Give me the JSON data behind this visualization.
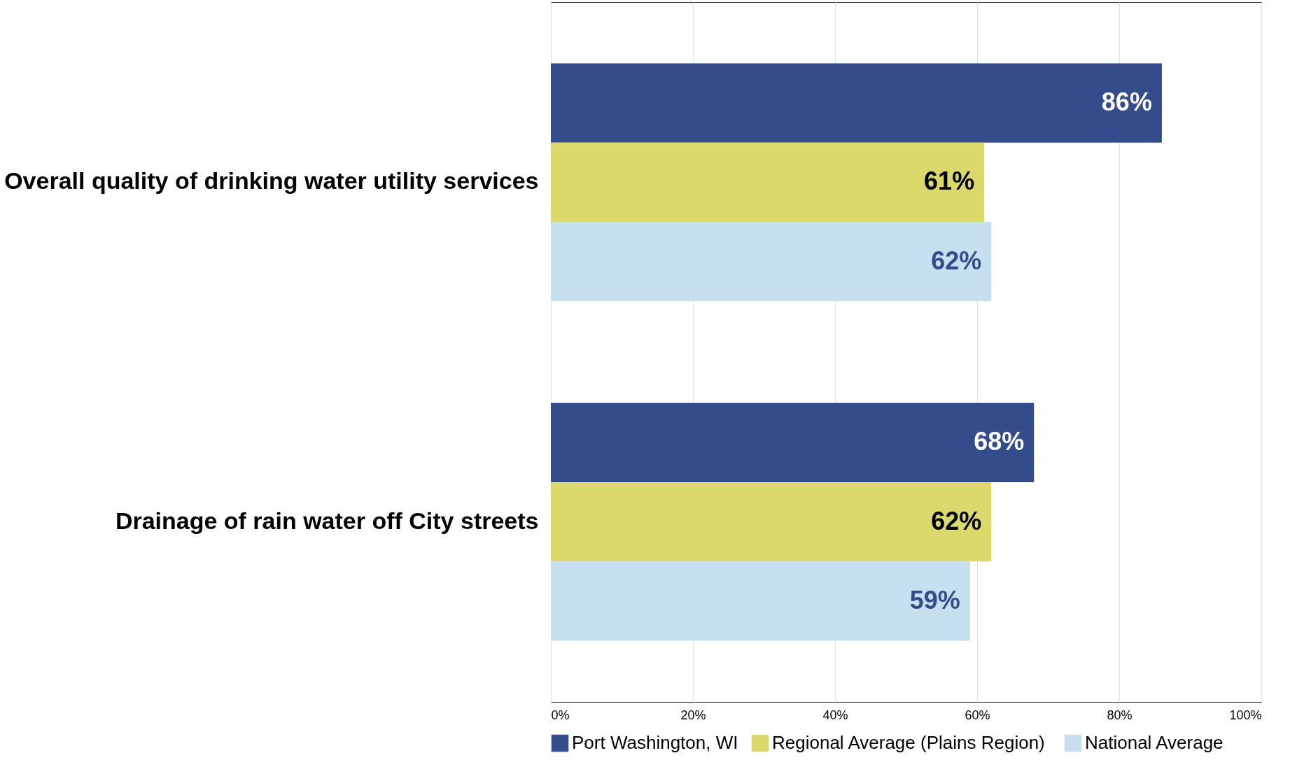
{
  "chart_data": {
    "type": "bar",
    "orientation": "horizontal",
    "categories": [
      "Overall quality of drinking water utility services",
      "Drainage of rain water off City streets"
    ],
    "series": [
      {
        "name": "Port Washington, WI",
        "color": "#344b8c",
        "values": [
          86,
          68
        ],
        "value_labels": [
          "86%",
          "68%"
        ]
      },
      {
        "name": "Regional  Average (Plains Region)",
        "color": "#dbd96b",
        "values": [
          61,
          62
        ],
        "value_labels": [
          "61%",
          "62%"
        ]
      },
      {
        "name": "National Average",
        "color": "#c7e0ef",
        "values": [
          62,
          59
        ],
        "value_labels": [
          "62%",
          "59%"
        ]
      }
    ],
    "xlim": [
      0,
      100
    ],
    "xticks": [
      {
        "value": 0,
        "label": "0%"
      },
      {
        "value": 20,
        "label": "20%"
      },
      {
        "value": 40,
        "label": "40%"
      },
      {
        "value": 60,
        "label": "60%"
      },
      {
        "value": 80,
        "label": "80%"
      },
      {
        "value": 100,
        "label": "100%"
      }
    ],
    "grid": "x",
    "legend": "bottom"
  }
}
